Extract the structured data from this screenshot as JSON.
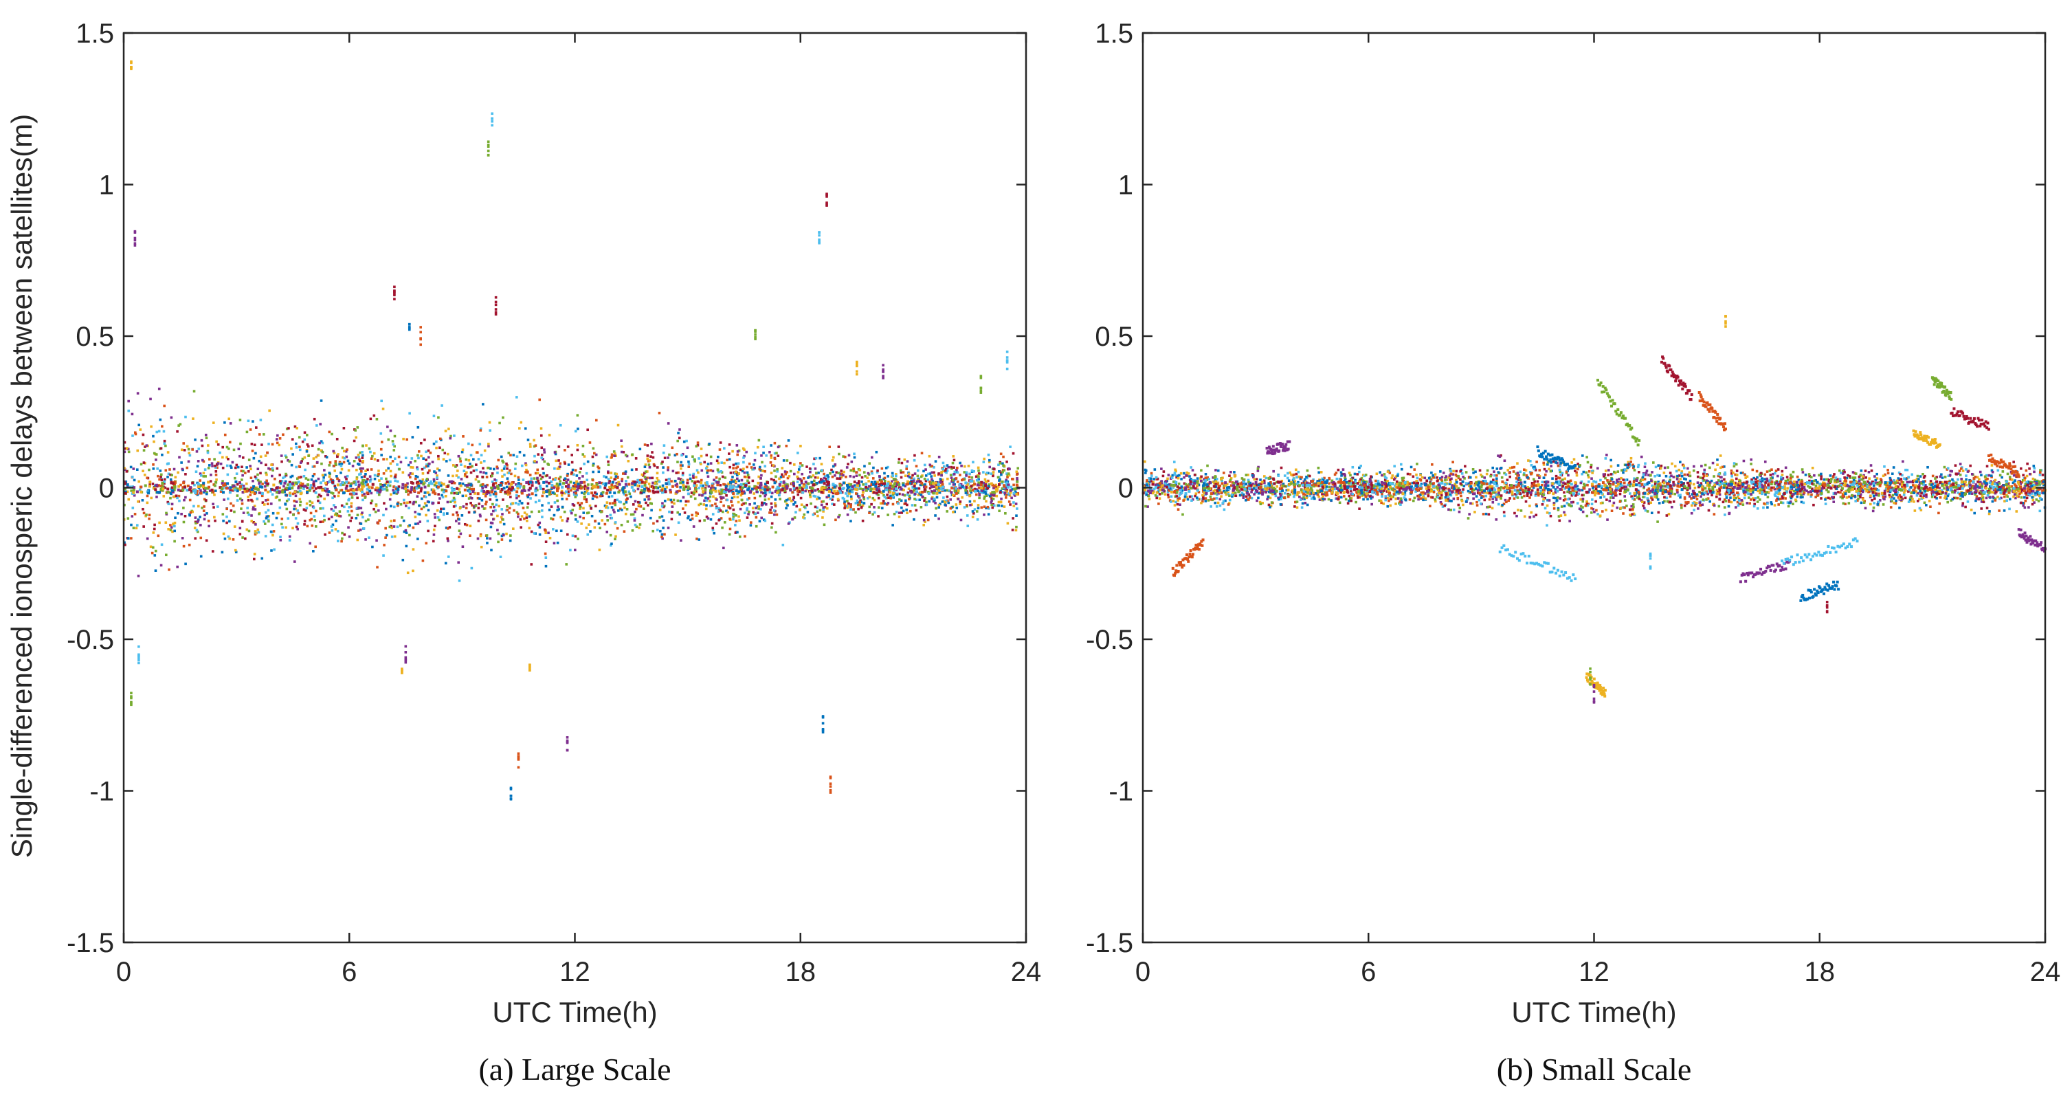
{
  "figure": {
    "y_axis_label": "Single-differenced ionosperic delays between satellites(m)"
  },
  "chart_data": [
    {
      "type": "scatter",
      "caption": "(a) Large Scale",
      "xlabel": "UTC Time(h)",
      "ylabel": "Single-differenced ionosperic delays between satellites(m)",
      "xlim": [
        0,
        24
      ],
      "ylim": [
        -1.5,
        1.5
      ],
      "xticks": [
        0,
        6,
        12,
        18,
        24
      ],
      "yticks": [
        -1.5,
        -1,
        -0.5,
        0,
        0.5,
        1,
        1.5
      ],
      "xtick_labels": [
        "0",
        "6",
        "12",
        "18",
        "24"
      ],
      "ytick_labels": [
        "-1.5",
        "-1",
        "-0.5",
        "0",
        "0.5",
        "1",
        "1.5"
      ],
      "series_colors": [
        "#0072bd",
        "#d95319",
        "#edb120",
        "#7e2f8e",
        "#77ac30",
        "#4dbeee",
        "#a2142f"
      ],
      "scatter_profile": {
        "band_center": 0,
        "band_half_width_by_hour": [
          [
            0,
            0.2
          ],
          [
            2,
            0.16
          ],
          [
            6,
            0.15
          ],
          [
            9,
            0.16
          ],
          [
            12,
            0.14
          ],
          [
            15,
            0.13
          ],
          [
            18,
            0.09
          ],
          [
            20,
            0.07
          ],
          [
            23.8,
            0.08
          ]
        ],
        "x_end": 23.8
      },
      "outliers": [
        [
          0.2,
          1.38
        ],
        [
          0.3,
          0.82
        ],
        [
          0.2,
          -0.7
        ],
        [
          0.4,
          -0.55
        ],
        [
          7.2,
          0.64
        ],
        [
          7.6,
          0.55
        ],
        [
          7.9,
          0.5
        ],
        [
          7.4,
          -0.62
        ],
        [
          7.5,
          -0.55
        ],
        [
          9.7,
          1.12
        ],
        [
          9.8,
          1.22
        ],
        [
          9.9,
          0.6
        ],
        [
          10.3,
          -1.02
        ],
        [
          10.5,
          -0.9
        ],
        [
          10.8,
          -0.6
        ],
        [
          11.8,
          -0.85
        ],
        [
          16.8,
          0.52
        ],
        [
          18.5,
          0.82
        ],
        [
          18.7,
          0.95
        ],
        [
          18.6,
          -0.78
        ],
        [
          18.8,
          -0.98
        ],
        [
          19.5,
          0.4
        ],
        [
          20.2,
          0.38
        ],
        [
          22.8,
          0.34
        ],
        [
          23.5,
          0.42
        ]
      ]
    },
    {
      "type": "scatter",
      "caption": "(b) Small Scale",
      "xlabel": "UTC Time(h)",
      "ylabel": "",
      "xlim": [
        0,
        24
      ],
      "ylim": [
        -1.5,
        1.5
      ],
      "xticks": [
        0,
        6,
        12,
        18,
        24
      ],
      "yticks": [
        -1.5,
        -1,
        -0.5,
        0,
        0.5,
        1,
        1.5
      ],
      "xtick_labels": [
        "0",
        "6",
        "12",
        "18",
        "24"
      ],
      "ytick_labels": [
        "-1.5",
        "-1",
        "-0.5",
        "0",
        "0.5",
        "1",
        "1.5"
      ],
      "series_colors": [
        "#0072bd",
        "#d95319",
        "#edb120",
        "#7e2f8e",
        "#77ac30",
        "#4dbeee",
        "#a2142f"
      ],
      "scatter_profile": {
        "band_center": 0,
        "band_half_width_by_hour": [
          [
            0,
            0.05
          ],
          [
            6,
            0.04
          ],
          [
            9,
            0.06
          ],
          [
            12,
            0.08
          ],
          [
            15,
            0.06
          ],
          [
            18,
            0.04
          ],
          [
            21,
            0.05
          ],
          [
            24,
            0.05
          ]
        ],
        "x_end": 24
      },
      "segments": [
        [
          0.8,
          1.6,
          -0.28,
          -0.18
        ],
        [
          3.3,
          3.9,
          0.12,
          0.14
        ],
        [
          9.5,
          11.5,
          -0.2,
          -0.3
        ],
        [
          10.5,
          11.5,
          0.12,
          0.06
        ],
        [
          11.8,
          12.3,
          -0.62,
          -0.68
        ],
        [
          12.1,
          13.2,
          0.35,
          0.15
        ],
        [
          13.8,
          14.6,
          0.42,
          0.3
        ],
        [
          14.8,
          15.5,
          0.3,
          0.2
        ],
        [
          15.9,
          17.2,
          -0.3,
          -0.25
        ],
        [
          17.0,
          19.0,
          -0.25,
          -0.18
        ],
        [
          17.5,
          18.5,
          -0.36,
          -0.32
        ],
        [
          20.5,
          21.2,
          0.18,
          0.14
        ],
        [
          21.0,
          21.5,
          0.36,
          0.3
        ],
        [
          21.5,
          22.5,
          0.25,
          0.2
        ],
        [
          22.5,
          23.3,
          0.1,
          0.05
        ],
        [
          23.3,
          24.0,
          -0.15,
          -0.2
        ]
      ],
      "outliers": [
        [
          15.5,
          0.54
        ],
        [
          12.0,
          -0.68
        ],
        [
          11.9,
          -0.62
        ],
        [
          13.5,
          -0.24
        ],
        [
          18.2,
          -0.4
        ]
      ]
    }
  ]
}
